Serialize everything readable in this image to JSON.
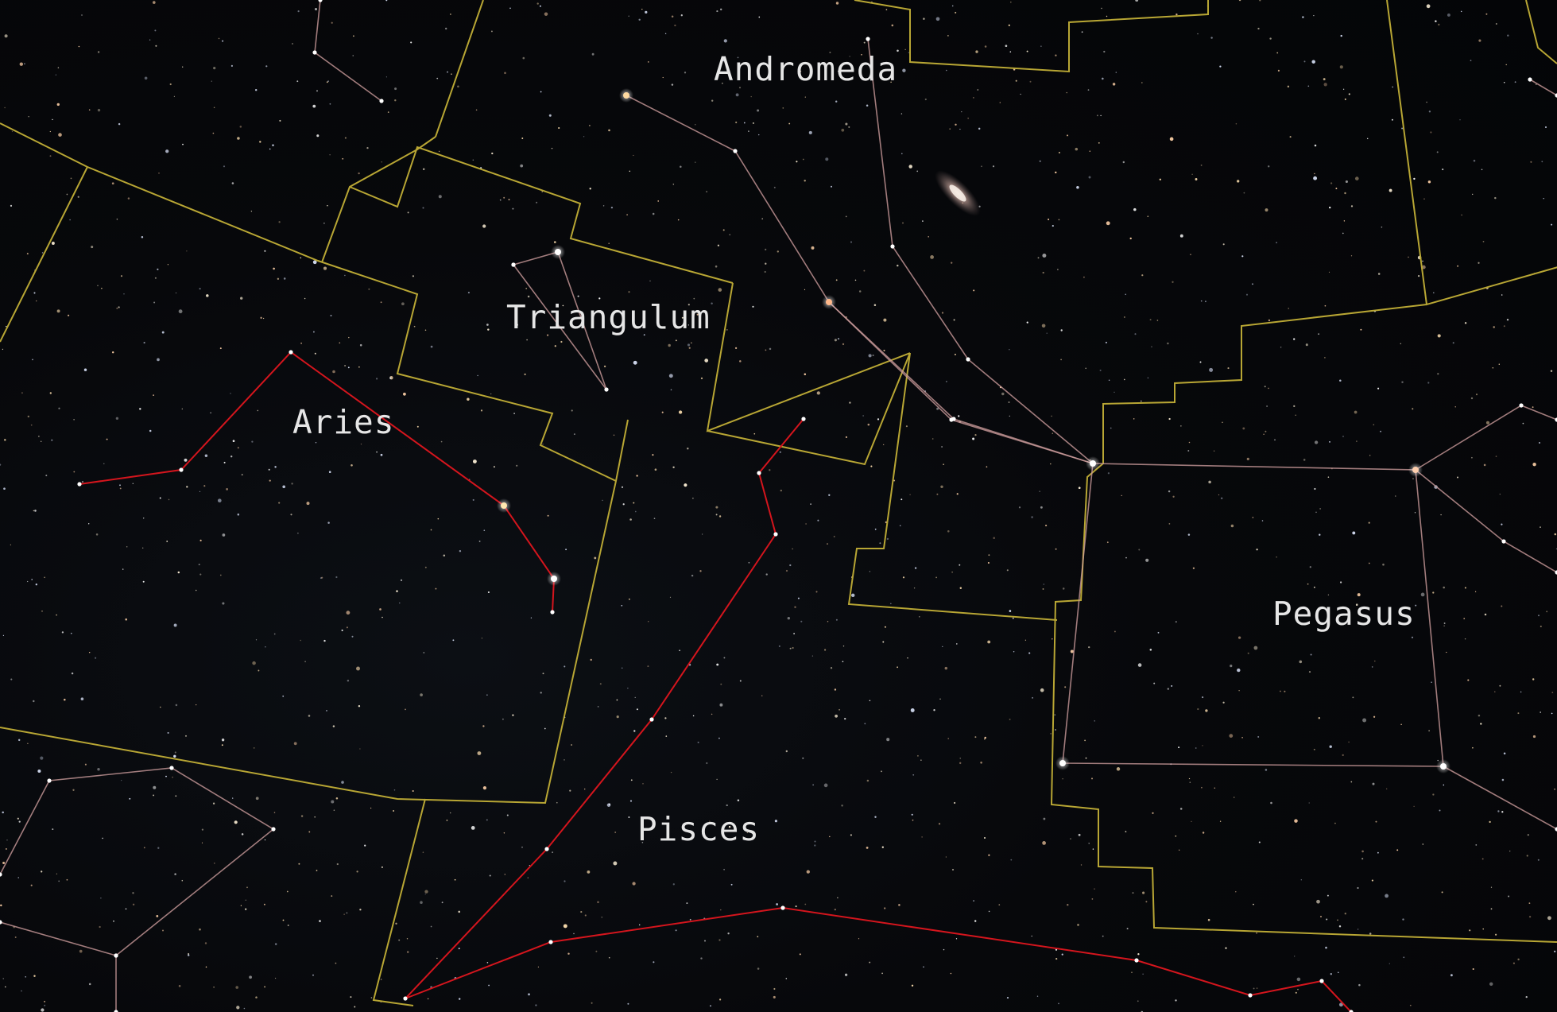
{
  "constellations": [
    {
      "id": "andromeda",
      "name": "Andromeda"
    },
    {
      "id": "triangulum",
      "name": "Triangulum"
    },
    {
      "id": "aries",
      "name": "Aries"
    },
    {
      "id": "pisces",
      "name": "Pisces"
    },
    {
      "id": "pegasus",
      "name": "Pegasus"
    }
  ],
  "colors": {
    "boundary": "#b8a634",
    "stick_figure": "#c99a9a",
    "highlight_figure": "#d4151d",
    "label": "#e6e6e6",
    "background": "#050608"
  },
  "objects": {
    "galaxy": "andromeda-galaxy-icon"
  }
}
